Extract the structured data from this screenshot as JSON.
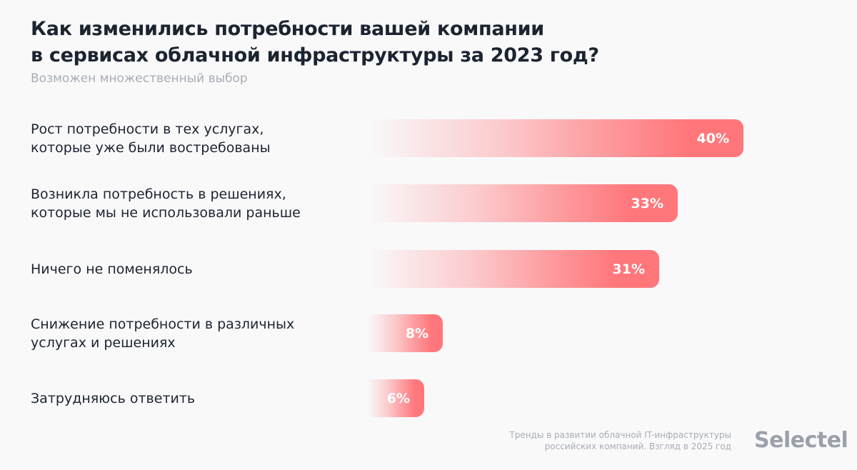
{
  "title_line1": "Как изменились потребности вашей компании",
  "title_line2": "в сервисах облачной инфраструктуры за 2023 год?",
  "subtitle": "Возможен множественный выбор",
  "chart_data": {
    "type": "bar",
    "orientation": "horizontal",
    "categories": [
      [
        "Рост потребности в тех услугах,",
        "которые уже были востребованы"
      ],
      [
        "Возникла потребность в решениях,",
        "которые мы не использовали раньше"
      ],
      [
        "Ничего не поменялось"
      ],
      [
        "Снижение потребности в различных",
        "услугах и решениях"
      ],
      [
        "Затрудняюсь ответить"
      ]
    ],
    "values": [
      40,
      33,
      31,
      8,
      6
    ],
    "value_labels": [
      "40%",
      "33%",
      "31%",
      "8%",
      "6%"
    ],
    "unit": "%",
    "grid": false,
    "bar_color": "#ff777b"
  },
  "footer": {
    "line1": "Тренды в развитии облачной IT-инфраструктуры",
    "line2": "российских компаний. Взгляд в 2025 год"
  },
  "logo": "Selectel"
}
